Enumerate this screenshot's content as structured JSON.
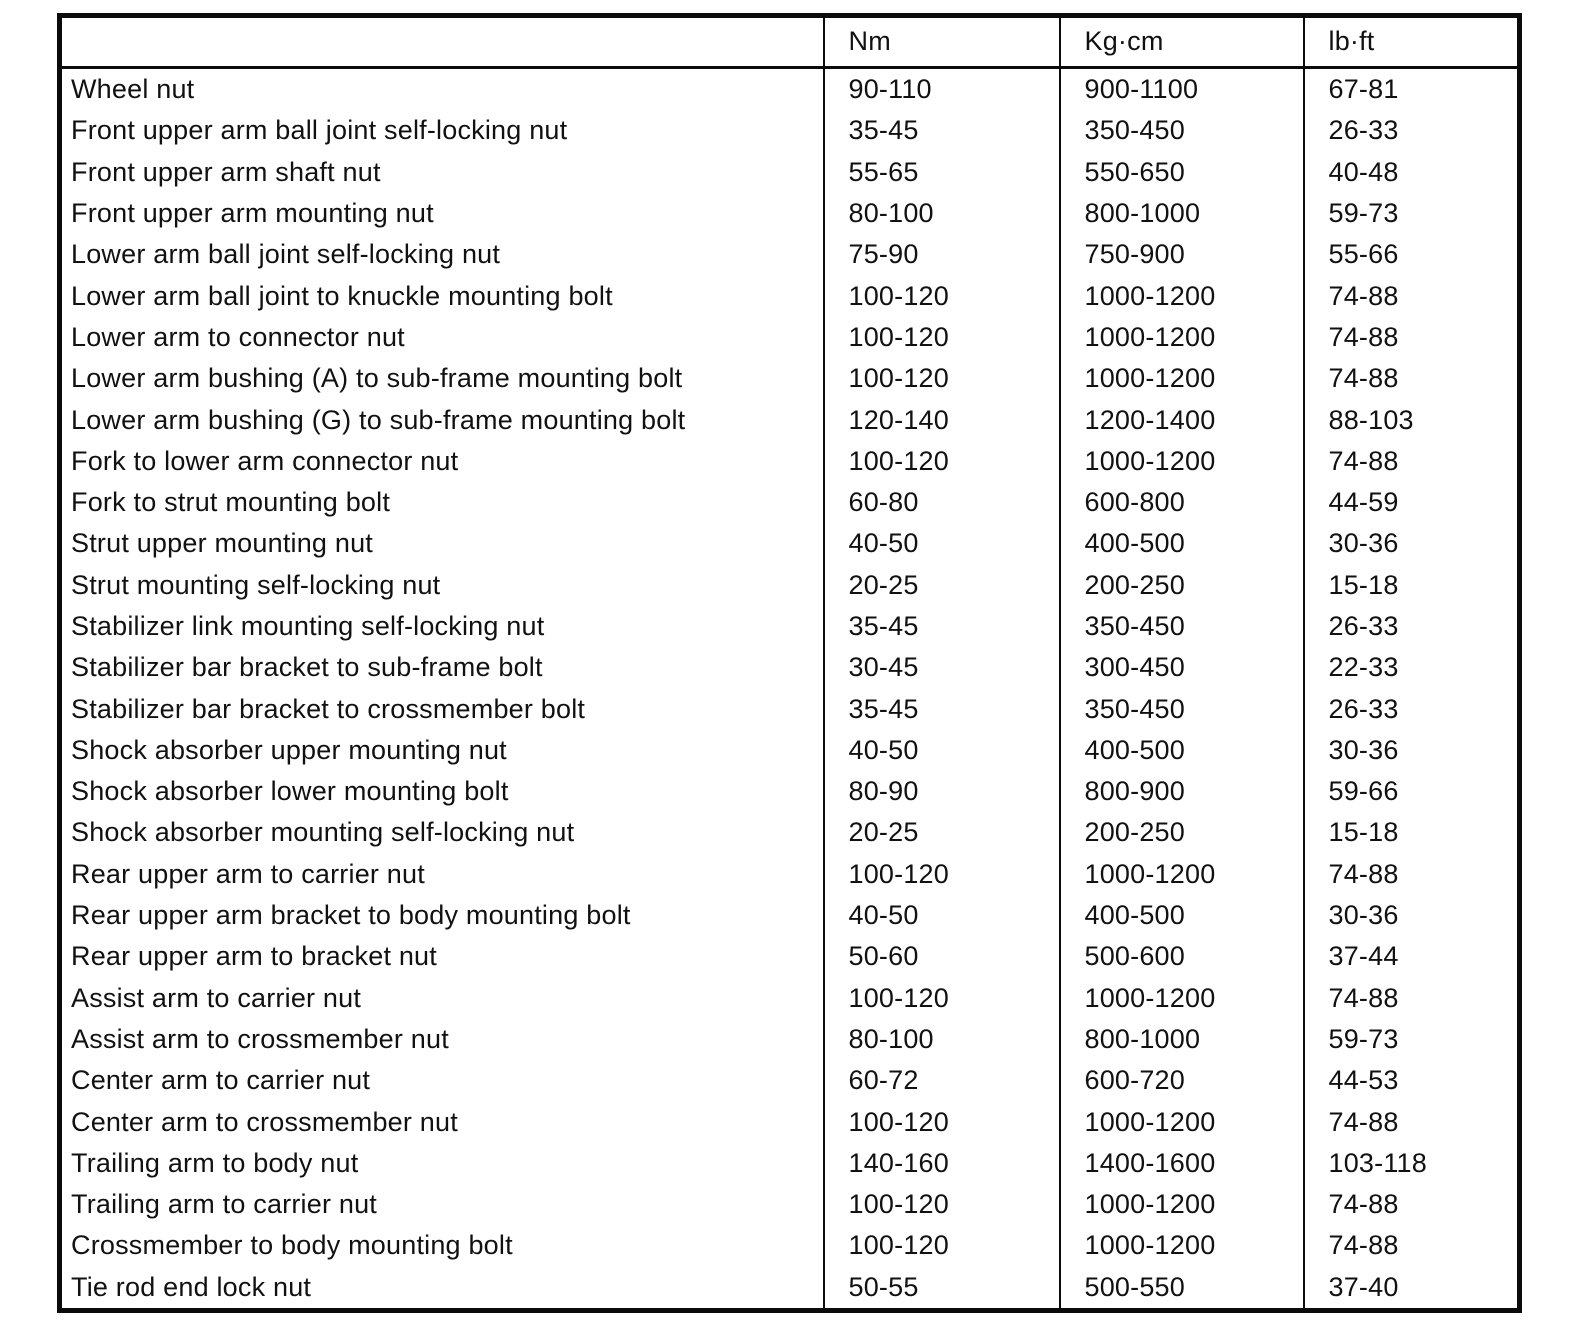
{
  "table": {
    "columns": [
      "",
      "Nm",
      "Kg·cm",
      "lb·ft"
    ],
    "rows": [
      {
        "label": "Wheel nut",
        "nm": "90-110",
        "kgcm": "900-1100",
        "lbft": "67-81"
      },
      {
        "label": "Front upper arm ball joint self-locking nut",
        "nm": "35-45",
        "kgcm": "350-450",
        "lbft": "26-33"
      },
      {
        "label": "Front upper arm shaft nut",
        "nm": "55-65",
        "kgcm": "550-650",
        "lbft": "40-48"
      },
      {
        "label": "Front upper arm mounting nut",
        "nm": "80-100",
        "kgcm": "800-1000",
        "lbft": "59-73"
      },
      {
        "label": "Lower arm ball joint self-locking nut",
        "nm": "75-90",
        "kgcm": "750-900",
        "lbft": "55-66"
      },
      {
        "label": "Lower arm ball joint to knuckle mounting bolt",
        "nm": "100-120",
        "kgcm": "1000-1200",
        "lbft": "74-88"
      },
      {
        "label": "Lower arm to connector nut",
        "nm": "100-120",
        "kgcm": "1000-1200",
        "lbft": "74-88"
      },
      {
        "label": "Lower arm bushing (A) to sub-frame mounting bolt",
        "nm": "100-120",
        "kgcm": "1000-1200",
        "lbft": "74-88"
      },
      {
        "label": "Lower arm bushing (G) to sub-frame mounting bolt",
        "nm": "120-140",
        "kgcm": "1200-1400",
        "lbft": "88-103"
      },
      {
        "label": "Fork to lower arm connector nut",
        "nm": "100-120",
        "kgcm": "1000-1200",
        "lbft": "74-88"
      },
      {
        "label": "Fork to strut mounting bolt",
        "nm": "60-80",
        "kgcm": "600-800",
        "lbft": "44-59"
      },
      {
        "label": "Strut upper mounting nut",
        "nm": "40-50",
        "kgcm": "400-500",
        "lbft": "30-36"
      },
      {
        "label": "Strut mounting self-locking nut",
        "nm": "20-25",
        "kgcm": "200-250",
        "lbft": "15-18"
      },
      {
        "label": "Stabilizer link mounting self-locking nut",
        "nm": "35-45",
        "kgcm": "350-450",
        "lbft": "26-33"
      },
      {
        "label": "Stabilizer bar bracket to sub-frame bolt",
        "nm": "30-45",
        "kgcm": "300-450",
        "lbft": "22-33"
      },
      {
        "label": "Stabilizer bar bracket to crossmember bolt",
        "nm": "35-45",
        "kgcm": "350-450",
        "lbft": "26-33"
      },
      {
        "label": "Shock absorber upper mounting nut",
        "nm": "40-50",
        "kgcm": "400-500",
        "lbft": "30-36"
      },
      {
        "label": "Shock absorber lower mounting bolt",
        "nm": "80-90",
        "kgcm": "800-900",
        "lbft": "59-66"
      },
      {
        "label": "Shock absorber mounting self-locking nut",
        "nm": "20-25",
        "kgcm": "200-250",
        "lbft": "15-18"
      },
      {
        "label": "Rear upper arm to carrier nut",
        "nm": "100-120",
        "kgcm": "1000-1200",
        "lbft": "74-88"
      },
      {
        "label": "Rear upper arm bracket to body mounting bolt",
        "nm": "40-50",
        "kgcm": "400-500",
        "lbft": "30-36"
      },
      {
        "label": "Rear upper arm to bracket nut",
        "nm": "50-60",
        "kgcm": "500-600",
        "lbft": "37-44"
      },
      {
        "label": "Assist arm to carrier nut",
        "nm": "100-120",
        "kgcm": "1000-1200",
        "lbft": "74-88"
      },
      {
        "label": "Assist arm to crossmember nut",
        "nm": "80-100",
        "kgcm": "800-1000",
        "lbft": "59-73"
      },
      {
        "label": "Center arm to carrier nut",
        "nm": "60-72",
        "kgcm": "600-720",
        "lbft": "44-53"
      },
      {
        "label": "Center arm to crossmember nut",
        "nm": "100-120",
        "kgcm": "1000-1200",
        "lbft": "74-88"
      },
      {
        "label": "Trailing arm to body nut",
        "nm": "140-160",
        "kgcm": "1400-1600",
        "lbft": "103-118"
      },
      {
        "label": "Trailing arm to carrier nut",
        "nm": "100-120",
        "kgcm": "1000-1200",
        "lbft": "74-88"
      },
      {
        "label": "Crossmember to body mounting bolt",
        "nm": "100-120",
        "kgcm": "1000-1200",
        "lbft": "74-88"
      },
      {
        "label": "Tie rod end lock nut",
        "nm": "50-55",
        "kgcm": "500-550",
        "lbft": "37-40"
      }
    ]
  }
}
